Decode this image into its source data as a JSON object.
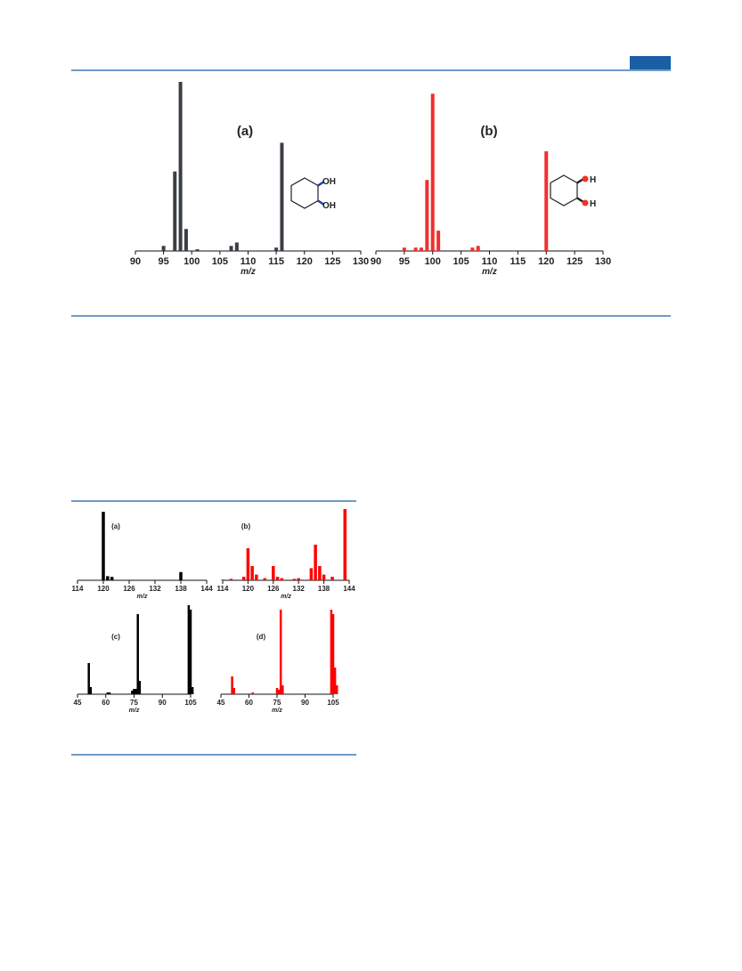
{
  "chart_data": [
    {
      "type": "bar",
      "label": "(a)",
      "xlabel": "m/z",
      "color": "#3a3f45",
      "xlim": [
        90,
        130
      ],
      "xticks": [
        90,
        95,
        100,
        105,
        110,
        115,
        120,
        125,
        130
      ],
      "ylim": [
        0,
        100
      ],
      "x": [
        95,
        97,
        98,
        99,
        101,
        107,
        108,
        115,
        116
      ],
      "values": [
        3,
        47,
        100,
        13,
        1,
        3,
        5,
        2,
        64
      ],
      "annotations": [
        "OH",
        "OH"
      ]
    },
    {
      "type": "bar",
      "label": "(b)",
      "xlabel": "m/z",
      "color": "#f03030",
      "xlim": [
        90,
        130
      ],
      "xticks": [
        90,
        95,
        100,
        105,
        110,
        115,
        120,
        125,
        130
      ],
      "ylim": [
        0,
        100
      ],
      "x": [
        95,
        97,
        98,
        99,
        100,
        101,
        107,
        108,
        120
      ],
      "values": [
        2,
        2,
        2,
        42,
        93,
        12,
        2,
        3,
        59
      ],
      "annotations": [
        "H",
        "H"
      ]
    },
    {
      "type": "bar",
      "label": "(a)",
      "xlabel": "m/z",
      "color": "#000000",
      "xlim": [
        114,
        144
      ],
      "xticks": [
        114,
        120,
        126,
        132,
        138,
        144
      ],
      "ylim": [
        0,
        100
      ],
      "x": [
        120,
        121,
        122,
        138
      ],
      "values": [
        100,
        6,
        5,
        12
      ]
    },
    {
      "type": "bar",
      "label": "(b)",
      "xlabel": "m/z",
      "color": "#ff0000",
      "xlim": [
        114,
        144
      ],
      "xticks": [
        114,
        120,
        126,
        132,
        138,
        144
      ],
      "ylim": [
        0,
        100
      ],
      "x": [
        114,
        116,
        119,
        120,
        121,
        122,
        124,
        126,
        127,
        128,
        131,
        132,
        135,
        136,
        137,
        138,
        140,
        143
      ],
      "values": [
        1,
        2,
        5,
        45,
        20,
        8,
        3,
        20,
        5,
        3,
        2,
        3,
        17,
        50,
        20,
        8,
        5,
        100
      ]
    },
    {
      "type": "bar",
      "label": "(c)",
      "xlabel": "m/z",
      "color": "#000000",
      "xlim": [
        45,
        105
      ],
      "xticks": [
        45,
        60,
        75,
        90,
        105
      ],
      "ylim": [
        0,
        100
      ],
      "x": [
        51,
        52,
        61,
        62,
        74,
        75,
        76,
        77,
        78,
        104,
        105,
        106
      ],
      "values": [
        35,
        8,
        2,
        2,
        4,
        6,
        6,
        90,
        15,
        100,
        95,
        8
      ]
    },
    {
      "type": "bar",
      "label": "(d)",
      "xlabel": "m/z",
      "color": "#ff0000",
      "xlim": [
        45,
        105
      ],
      "xticks": [
        45,
        60,
        75,
        90,
        105
      ],
      "ylim": [
        0,
        100
      ],
      "x": [
        51,
        52,
        62,
        75,
        76,
        77,
        78,
        104,
        105,
        106,
        107
      ],
      "values": [
        20,
        7,
        2,
        7,
        5,
        95,
        10,
        95,
        90,
        30,
        10
      ]
    }
  ]
}
